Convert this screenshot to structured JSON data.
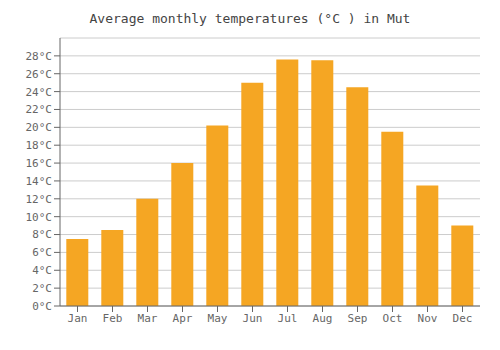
{
  "chart_data": {
    "type": "bar",
    "title": "Average monthly temperatures (°C ) in Mut",
    "categories": [
      "Jan",
      "Feb",
      "Mar",
      "Apr",
      "May",
      "Jun",
      "Jul",
      "Aug",
      "Sep",
      "Oct",
      "Nov",
      "Dec"
    ],
    "values": [
      7.5,
      8.5,
      12.0,
      16.0,
      20.2,
      25.0,
      27.6,
      27.5,
      24.5,
      19.5,
      13.5,
      9.0
    ],
    "color": "#F5A623",
    "ylim": [
      0,
      30
    ],
    "yticks": [
      {
        "value": 0,
        "label": "0°C"
      },
      {
        "value": 2,
        "label": "2°C"
      },
      {
        "value": 4,
        "label": "4°C"
      },
      {
        "value": 6,
        "label": "6°C"
      },
      {
        "value": 8,
        "label": "8°C"
      },
      {
        "value": 10,
        "label": "10°C"
      },
      {
        "value": 12,
        "label": "12°C"
      },
      {
        "value": 14,
        "label": "14°C"
      },
      {
        "value": 16,
        "label": "16°C"
      },
      {
        "value": 18,
        "label": "18°C"
      },
      {
        "value": 20,
        "label": "20°C"
      },
      {
        "value": 22,
        "label": "22°C"
      },
      {
        "value": 24,
        "label": "24°C"
      },
      {
        "value": 26,
        "label": "26°C"
      },
      {
        "value": 28,
        "label": "28°C"
      }
    ],
    "grid": true
  }
}
